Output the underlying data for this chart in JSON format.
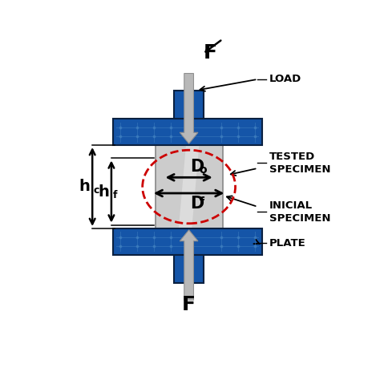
{
  "bg": "#ffffff",
  "blue": "#1555a8",
  "blue_edge": "#0a2040",
  "blue_light": "#4080c0",
  "gray_spec": "#cccccc",
  "gray_light": "#e2e2e2",
  "gray_arrow": "#b8b8b8",
  "gray_arrow_edge": "#909090",
  "red_dash": "#cc0000",
  "black": "#000000",
  "figsize": [
    4.74,
    4.74
  ],
  "dpi": 100,
  "labels": {
    "F": "F",
    "LOAD": "LOAD",
    "TESTED": "TESTED\nSPECIMEN",
    "INICIAL": "INICIAL\nSPECIMEN",
    "PLATE": "PLATE",
    "Do": "D",
    "Do_sub": "o",
    "Df": "D",
    "Df_sub": "f",
    "hc": "h",
    "hc_sub": "c",
    "hf": "h",
    "hf_sub": "f"
  }
}
